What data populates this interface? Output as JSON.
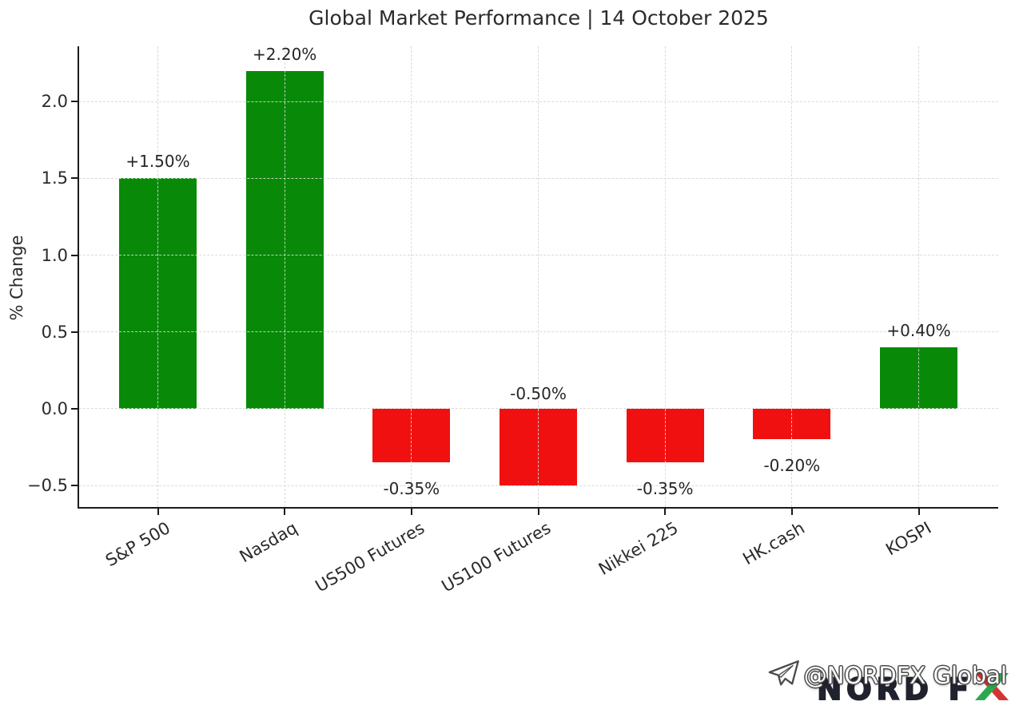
{
  "chart_data": {
    "type": "bar",
    "title": "Global Market Performance | 14 October 2025",
    "xlabel": "",
    "ylabel": "% Change",
    "categories": [
      "S&P 500",
      "Nasdaq",
      "US500 Futures",
      "US100 Futures",
      "Nikkei 225",
      "HK.cash",
      "KOSPI"
    ],
    "values": [
      1.5,
      2.2,
      -0.35,
      -0.5,
      -0.35,
      -0.2,
      0.4
    ],
    "bar_labels": [
      "+1.50%",
      "+2.20%",
      "-0.35%",
      "-0.50%",
      "-0.35%",
      "-0.20%",
      "+0.40%"
    ],
    "label_placement": [
      "above_bar",
      "above_bar",
      "below_bar",
      "above_zero",
      "below_bar",
      "below_bar",
      "above_bar"
    ],
    "yticks": [
      2.0,
      1.5,
      1.0,
      0.5,
      0.0,
      -0.5
    ],
    "ytick_labels": [
      "2.0",
      "1.5",
      "1.0",
      "0.5",
      "0.0",
      "−0.5"
    ],
    "ylim": [
      -0.64,
      2.36
    ],
    "grid": true,
    "legend": null,
    "colors": {
      "positive": "#088a08",
      "negative": "#f11010",
      "grid": "#d6d6d6",
      "axis": "#1a1a1a",
      "text": "#2a2a2a"
    }
  },
  "watermark": {
    "handle": "@NORDFX Global",
    "telegram_icon": "telegram-plane-icon",
    "logo_text_before_x": "NORD F",
    "colors": {
      "logo_text": "#20232e",
      "x_red": "#d23434",
      "x_green": "#2ea84f",
      "handle_fill": "#ffffff",
      "handle_outline": "#4a4a4a"
    }
  }
}
